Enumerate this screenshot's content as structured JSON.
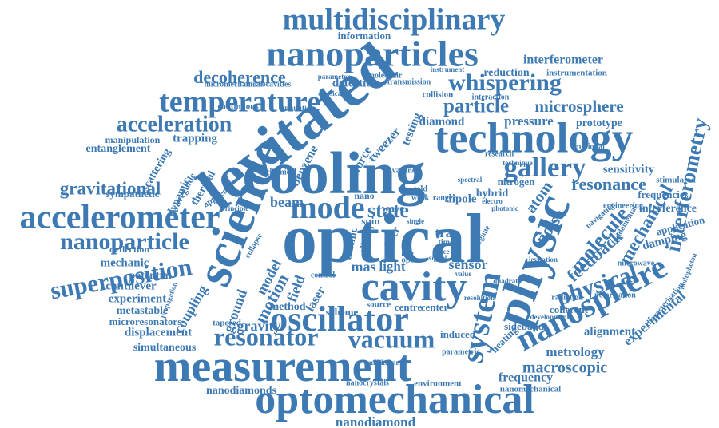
{
  "palette": {
    "word": "#3d7ab4",
    "background": "#ffffff"
  },
  "words": [
    {
      "text": "multidisciplinary",
      "weight": 5
    },
    {
      "text": "nanoparticles",
      "weight": 6
    },
    {
      "text": "interferometer",
      "weight": 3
    },
    {
      "text": "decoherence",
      "weight": 4
    },
    {
      "text": "whispering",
      "weight": 5
    },
    {
      "text": "temperature",
      "weight": 6
    },
    {
      "text": "levitated",
      "weight": 9
    },
    {
      "text": "detection",
      "weight": 3
    },
    {
      "text": "reduction",
      "weight": 3
    },
    {
      "text": "particle",
      "weight": 4
    },
    {
      "text": "microsphere",
      "weight": 4
    },
    {
      "text": "acceleration",
      "weight": 4
    },
    {
      "text": "technology",
      "weight": 7
    },
    {
      "text": "cooling",
      "weight": 9
    },
    {
      "text": "diamond",
      "weight": 2
    },
    {
      "text": "pressure",
      "weight": 3
    },
    {
      "text": "prototype",
      "weight": 2
    },
    {
      "text": "gallery",
      "weight": 5
    },
    {
      "text": "sensitivity",
      "weight": 3
    },
    {
      "text": "resonance",
      "weight": 4
    },
    {
      "text": "gravitational",
      "weight": 4
    },
    {
      "text": "mode",
      "weight": 5
    },
    {
      "text": "accelerometer",
      "weight": 7
    },
    {
      "text": "science",
      "weight": 8
    },
    {
      "text": "optical",
      "weight": 10
    },
    {
      "text": "physic",
      "weight": 8
    },
    {
      "text": "nanoparticle",
      "weight": 5
    },
    {
      "text": "state",
      "weight": 4
    },
    {
      "text": "molecule",
      "weight": 4
    },
    {
      "text": "interferometry",
      "weight": 4
    },
    {
      "text": "superposition",
      "weight": 5
    },
    {
      "text": "mechanical",
      "weight": 4
    },
    {
      "text": "feedback",
      "weight": 4
    },
    {
      "text": "physical",
      "weight": 5
    },
    {
      "text": "cavity",
      "weight": 7
    },
    {
      "text": "nanosphere",
      "weight": 6
    },
    {
      "text": "oscillator",
      "weight": 6
    },
    {
      "text": "experimental",
      "weight": 3
    },
    {
      "text": "resonator",
      "weight": 5
    },
    {
      "text": "vacuum",
      "weight": 5
    },
    {
      "text": "measurement",
      "weight": 8
    },
    {
      "text": "system",
      "weight": 5
    },
    {
      "text": "metrology",
      "weight": 3
    },
    {
      "text": "macroscopic",
      "weight": 3
    },
    {
      "text": "optomechanical",
      "weight": 8
    },
    {
      "text": "nanodiamond",
      "weight": 2
    },
    {
      "text": "frequency",
      "weight": 2
    },
    {
      "text": "nanomechanical",
      "weight": 1
    },
    {
      "text": "nanodiamonds",
      "weight": 2
    },
    {
      "text": "simultaneous",
      "weight": 2
    },
    {
      "text": "displacement",
      "weight": 2
    },
    {
      "text": "microresonators",
      "weight": 1
    },
    {
      "text": "metastable",
      "weight": 1
    },
    {
      "text": "experiment",
      "weight": 2
    },
    {
      "text": "cantilever",
      "weight": 2
    },
    {
      "text": "potential",
      "weight": 2
    },
    {
      "text": "mechanic",
      "weight": 2
    },
    {
      "text": "deflection",
      "weight": 1
    },
    {
      "text": "sympathetic",
      "weight": 2
    },
    {
      "text": "entanglement",
      "weight": 2
    },
    {
      "text": "manipulation",
      "weight": 1
    },
    {
      "text": "trapping",
      "weight": 2
    },
    {
      "text": "information",
      "weight": 1
    },
    {
      "text": "instrumentation",
      "weight": 1
    },
    {
      "text": "microcavities",
      "weight": 1
    },
    {
      "text": "micromechanical",
      "weight": 1
    },
    {
      "text": "continuous",
      "weight": 1
    },
    {
      "text": "simulation",
      "weight": 1
    },
    {
      "text": "collision",
      "weight": 1
    },
    {
      "text": "interaction",
      "weight": 1
    },
    {
      "text": "atom",
      "weight": 4
    },
    {
      "text": "noise",
      "weight": 4
    },
    {
      "text": "beam",
      "weight": 3
    },
    {
      "text": "force",
      "weight": 3
    },
    {
      "text": "tweezer",
      "weight": 3
    },
    {
      "text": "testing",
      "weight": 3
    },
    {
      "text": "benzene",
      "weight": 3
    },
    {
      "text": "gravity",
      "weight": 3
    },
    {
      "text": "motion",
      "weight": 4
    },
    {
      "text": "model",
      "weight": 3
    },
    {
      "text": "field",
      "weight": 4
    },
    {
      "text": "method",
      "weight": 2
    },
    {
      "text": "laser",
      "weight": 3
    },
    {
      "text": "scheme",
      "weight": 2
    },
    {
      "text": "centre",
      "weight": 2
    },
    {
      "text": "center",
      "weight": 2
    },
    {
      "text": "induced",
      "weight": 2
    },
    {
      "text": "light",
      "weight": 3
    },
    {
      "text": "mas",
      "weight": 3
    },
    {
      "text": "sensor",
      "weight": 3
    },
    {
      "text": "trap",
      "weight": 3
    },
    {
      "text": "fiber",
      "weight": 2
    },
    {
      "text": "spin",
      "weight": 2
    },
    {
      "text": "wave",
      "weight": 2
    },
    {
      "text": "nano",
      "weight": 2
    },
    {
      "text": "dipole",
      "weight": 2
    },
    {
      "text": "hybrid",
      "weight": 2
    },
    {
      "text": "nitrogen",
      "weight": 2
    },
    {
      "text": "coupling",
      "weight": 3
    },
    {
      "text": "ground",
      "weight": 3
    },
    {
      "text": "atomic",
      "weight": 3
    },
    {
      "text": "silicon",
      "weight": 2
    },
    {
      "text": "heating",
      "weight": 2
    },
    {
      "text": "sideband",
      "weight": 2
    },
    {
      "text": "coherent",
      "weight": 2
    },
    {
      "text": "alignment",
      "weight": 2
    },
    {
      "text": "damping",
      "weight": 2
    },
    {
      "text": "application",
      "weight": 2
    },
    {
      "text": "navigation",
      "weight": 1
    },
    {
      "text": "interference",
      "weight": 2
    },
    {
      "text": "frequencies",
      "weight": 2
    },
    {
      "text": "stimulated",
      "weight": 1
    },
    {
      "text": "engineering",
      "weight": 1
    },
    {
      "text": "research",
      "weight": 1
    },
    {
      "text": "motional",
      "weight": 1
    },
    {
      "text": "fundamental",
      "weight": 1
    },
    {
      "text": "radiation",
      "weight": 1
    },
    {
      "text": "polarization",
      "weight": 1
    },
    {
      "text": "microwave",
      "weight": 1
    },
    {
      "text": "characterisation",
      "weight": 1
    },
    {
      "text": "environment",
      "weight": 1
    },
    {
      "text": "nanocrystals",
      "weight": 1
    },
    {
      "text": "parametric",
      "weight": 1
    },
    {
      "text": "millikelvin",
      "weight": 1
    },
    {
      "text": "thermal",
      "weight": 2
    },
    {
      "text": "dynamic",
      "weight": 2
    },
    {
      "text": "scattering",
      "weight": 2
    },
    {
      "text": "waveguide",
      "weight": 1
    },
    {
      "text": "applied",
      "weight": 1
    },
    {
      "text": "molecular",
      "weight": 1
    },
    {
      "text": "transmission",
      "weight": 1
    },
    {
      "text": "technique",
      "weight": 1
    },
    {
      "text": "electro",
      "weight": 1
    },
    {
      "text": "photonic",
      "weight": 1
    },
    {
      "text": "levitation",
      "weight": 1
    },
    {
      "text": "spectral",
      "weight": 1
    },
    {
      "text": "range",
      "weight": 1
    },
    {
      "text": "weak",
      "weight": 1
    },
    {
      "text": "time",
      "weight": 1
    },
    {
      "text": "space",
      "weight": 1
    },
    {
      "text": "rate",
      "weight": 1
    },
    {
      "text": "single",
      "weight": 1
    },
    {
      "text": "regime",
      "weight": 1
    },
    {
      "text": "tapered",
      "weight": 1
    },
    {
      "text": "chemical",
      "weight": 1
    },
    {
      "text": "principle",
      "weight": 1
    },
    {
      "text": "classical",
      "weight": 1
    },
    {
      "text": "parameter",
      "weight": 1
    },
    {
      "text": "instrument",
      "weight": 1
    },
    {
      "text": "development",
      "weight": 1
    },
    {
      "text": "multiphoton",
      "weight": 1
    },
    {
      "text": "propagation",
      "weight": 1
    },
    {
      "text": "collapse",
      "weight": 1
    },
    {
      "text": "source",
      "weight": 1
    },
    {
      "text": "control",
      "weight": 1
    },
    {
      "text": "vacancy",
      "weight": 1
    },
    {
      "text": "cold",
      "weight": 1
    },
    {
      "text": "optic",
      "weight": 1
    },
    {
      "text": "value",
      "weight": 1
    },
    {
      "text": "signal",
      "weight": 1
    },
    {
      "text": "quadratic",
      "weight": 1
    },
    {
      "text": "resolution",
      "weight": 1
    }
  ]
}
